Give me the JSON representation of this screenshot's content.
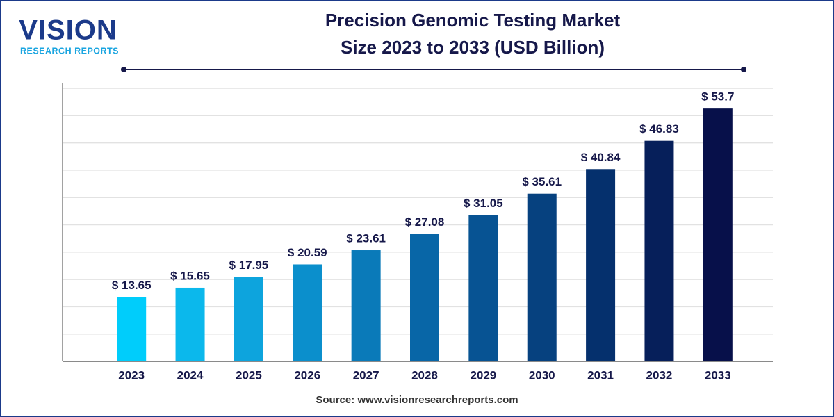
{
  "chart_data": {
    "type": "bar",
    "title": [
      "Precision Genomic Testing Market",
      "Size 2023 to 2033 (USD Billion)"
    ],
    "brand": "VISION",
    "brand_sub": "RESEARCH REPORTS",
    "source": "Source: www.visionresearchreports.com",
    "categories": [
      "2023",
      "2024",
      "2025",
      "2026",
      "2027",
      "2028",
      "2029",
      "2030",
      "2031",
      "2032",
      "2033"
    ],
    "values": [
      13.65,
      15.65,
      17.95,
      20.59,
      23.61,
      27.08,
      31.05,
      35.61,
      40.84,
      46.83,
      53.7
    ],
    "value_labels": [
      "$ 13.65",
      "$ 15.65",
      "$ 17.95",
      "$ 20.59",
      "$ 23.61",
      "$ 27.08",
      "$ 31.05",
      "$ 35.61",
      "$ 40.84",
      "$ 46.83",
      "$ 53.7"
    ],
    "colors": [
      "#00cdfb",
      "#0bb8ec",
      "#0da4dd",
      "#0b8fcc",
      "#0a7ab9",
      "#0866a7",
      "#075393",
      "#06417f",
      "#05306d",
      "#061f5a",
      "#07104a"
    ],
    "ylim": [
      0,
      58
    ],
    "yticks": [
      0,
      5.8,
      11.6,
      17.4,
      23.2,
      29,
      34.8,
      40.6,
      46.4,
      52.2,
      58
    ],
    "grid": true
  }
}
